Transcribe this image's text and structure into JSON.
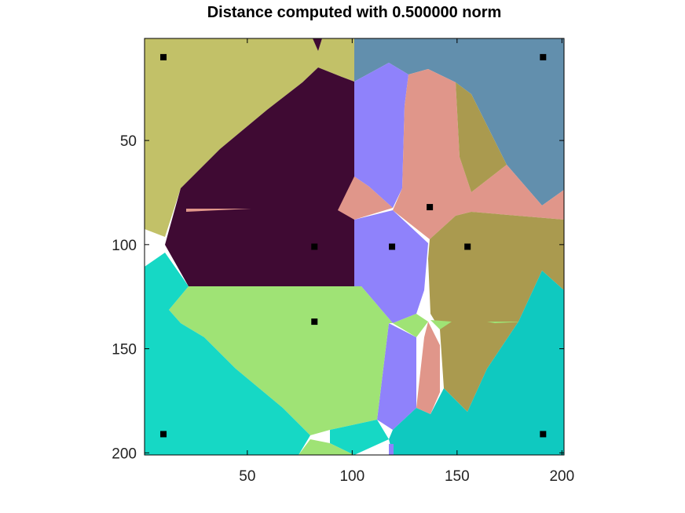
{
  "chart_data": {
    "type": "heatmap",
    "title": "Distance computed with 0.500000 norm",
    "xlabel": "",
    "ylabel": "",
    "xlim": [
      1,
      201
    ],
    "ylim": [
      201,
      1
    ],
    "y_reversed": true,
    "xticks": [
      50,
      100,
      150,
      200
    ],
    "yticks": [
      50,
      100,
      150,
      200
    ],
    "grid": false,
    "seed_points": [
      {
        "x": 10,
        "y": 10
      },
      {
        "x": 191,
        "y": 10
      },
      {
        "x": 137,
        "y": 82
      },
      {
        "x": 82,
        "y": 101
      },
      {
        "x": 119,
        "y": 101
      },
      {
        "x": 155,
        "y": 101
      },
      {
        "x": 82,
        "y": 137
      },
      {
        "x": 10,
        "y": 191
      },
      {
        "x": 191,
        "y": 191
      }
    ],
    "region_colors": {
      "top_left": "#c2c168",
      "top_center": "#3f0a33",
      "top_right": "#628fad",
      "center_left_purple": "#8f82fb",
      "center_salmon": "#e0968a",
      "center_olive": "#aa9a4f",
      "center_green": "#9fe375",
      "bottom_left": "#16d8c5",
      "bottom_right": "#0fc9c0"
    }
  }
}
